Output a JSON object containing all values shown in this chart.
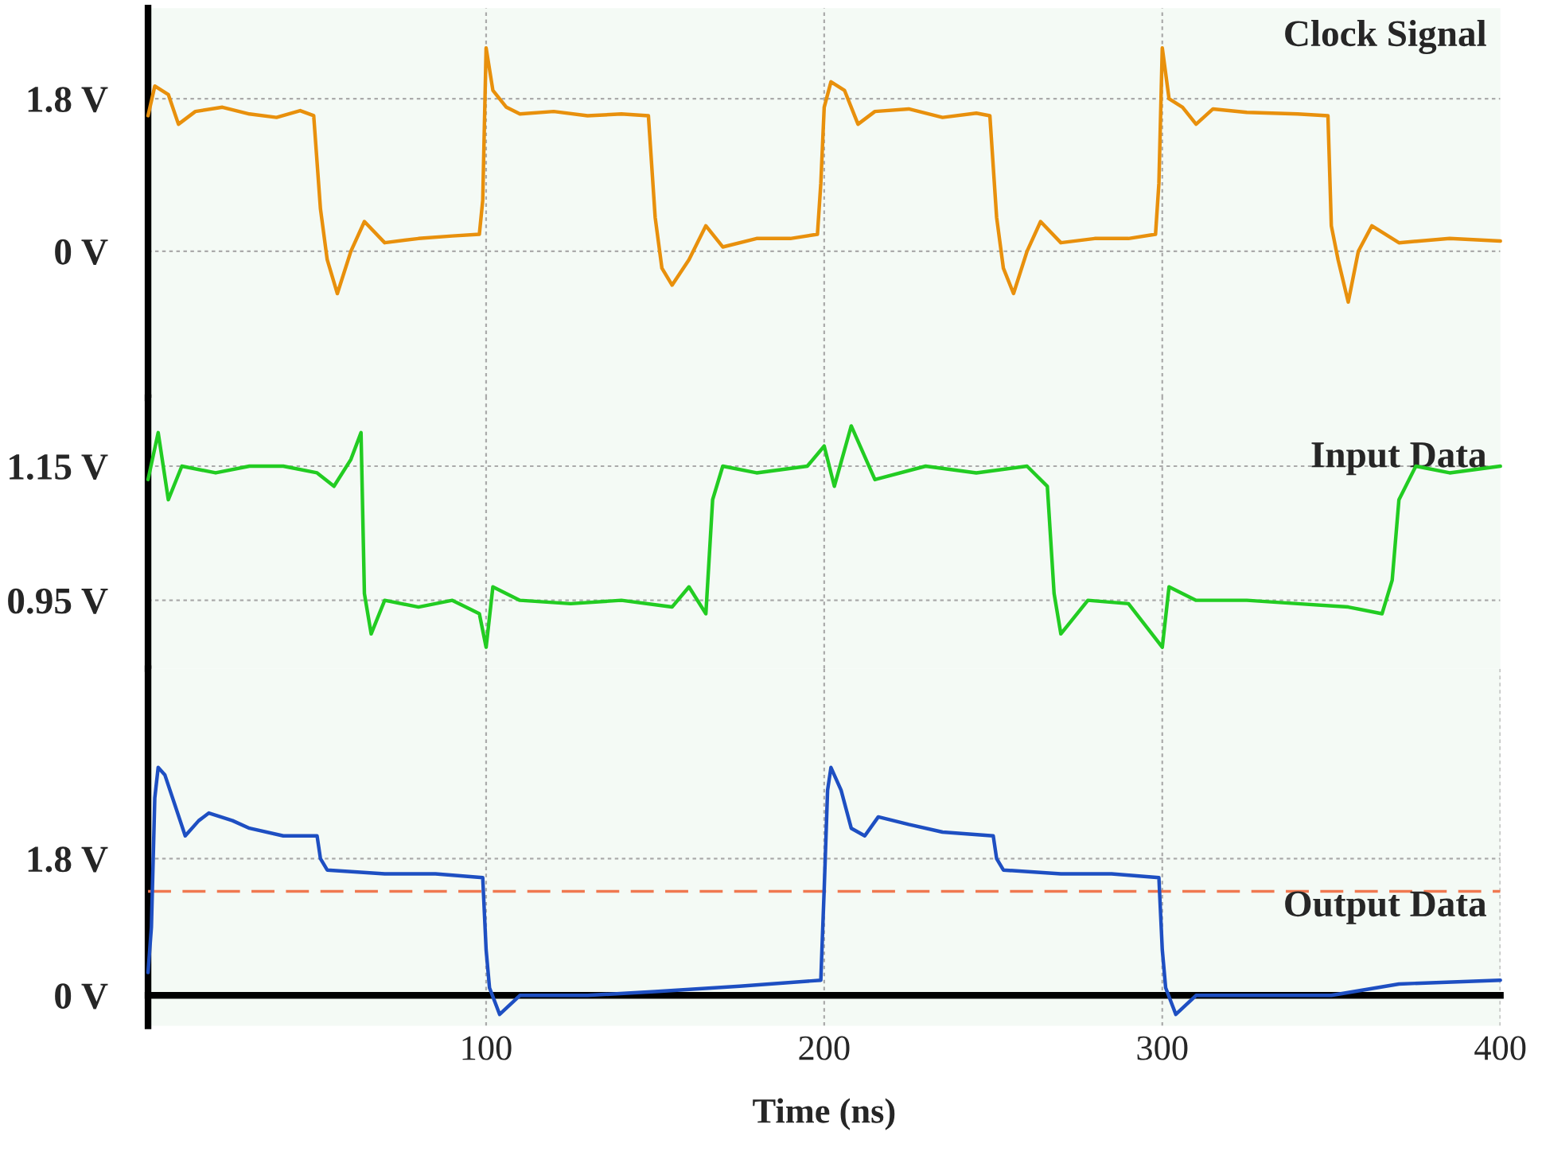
{
  "chart_data": [
    {
      "type": "line",
      "title": "Clock Signal",
      "xlim": [
        0,
        400
      ],
      "ylim": [
        -1.73,
        2.87
      ],
      "yticks": [
        {
          "value": 0,
          "label": "0 V"
        },
        {
          "value": 1.8,
          "label": "1.8 V"
        }
      ],
      "tick_labels": "y",
      "grid": true,
      "marker": "none",
      "line_style": "solid",
      "series": [
        {
          "color": "#e8900c",
          "x": [
            0,
            2,
            6,
            9,
            14,
            22,
            30,
            38,
            45,
            49,
            51,
            53,
            56,
            60,
            64,
            70,
            80,
            90,
            98,
            99,
            100,
            102,
            106,
            110,
            120,
            130,
            140,
            148,
            150,
            152,
            155,
            160,
            165,
            170,
            180,
            190,
            198,
            199,
            200,
            202,
            206,
            210,
            215,
            225,
            235,
            245,
            249,
            251,
            253,
            256,
            260,
            264,
            270,
            280,
            290,
            298,
            299,
            300,
            302,
            306,
            310,
            315,
            325,
            340,
            349,
            350,
            352,
            355,
            358,
            362,
            370,
            385,
            400
          ],
          "values": [
            1.6,
            1.95,
            1.85,
            1.5,
            1.65,
            1.7,
            1.62,
            1.58,
            1.66,
            1.6,
            0.5,
            -0.1,
            -0.5,
            0.0,
            0.35,
            0.1,
            0.15,
            0.18,
            0.2,
            0.6,
            2.4,
            1.9,
            1.7,
            1.62,
            1.65,
            1.6,
            1.62,
            1.6,
            0.4,
            -0.2,
            -0.4,
            -0.1,
            0.3,
            0.05,
            0.15,
            0.15,
            0.2,
            0.8,
            1.7,
            2.0,
            1.9,
            1.5,
            1.65,
            1.68,
            1.58,
            1.63,
            1.6,
            0.4,
            -0.2,
            -0.5,
            0.0,
            0.35,
            0.1,
            0.15,
            0.15,
            0.2,
            0.8,
            2.4,
            1.8,
            1.7,
            1.5,
            1.68,
            1.64,
            1.62,
            1.6,
            0.3,
            -0.1,
            -0.6,
            0.0,
            0.3,
            0.1,
            0.15,
            0.12
          ]
        }
      ]
    },
    {
      "type": "line",
      "title": "Input Data",
      "xlim": [
        0,
        400
      ],
      "ylim": [
        0.848,
        1.252
      ],
      "yticks": [
        {
          "value": 0.95,
          "label": "0.95 V"
        },
        {
          "value": 1.15,
          "label": "1.15 V"
        }
      ],
      "tick_labels": "y",
      "grid": true,
      "marker": "none",
      "line_style": "solid",
      "series": [
        {
          "color": "#22cc22",
          "x": [
            0,
            3,
            6,
            10,
            20,
            30,
            40,
            50,
            55,
            60,
            63,
            64,
            66,
            70,
            80,
            90,
            98,
            100,
            102,
            110,
            125,
            140,
            155,
            160,
            165,
            167,
            170,
            180,
            195,
            200,
            203,
            208,
            215,
            230,
            245,
            260,
            266,
            268,
            270,
            278,
            290,
            300,
            302,
            310,
            325,
            340,
            355,
            365,
            368,
            370,
            375,
            385,
            400
          ],
          "values": [
            1.13,
            1.2,
            1.1,
            1.15,
            1.14,
            1.15,
            1.15,
            1.14,
            1.12,
            1.16,
            1.2,
            0.96,
            0.9,
            0.95,
            0.94,
            0.95,
            0.93,
            0.88,
            0.97,
            0.95,
            0.945,
            0.95,
            0.94,
            0.97,
            0.93,
            1.1,
            1.15,
            1.14,
            1.15,
            1.18,
            1.12,
            1.21,
            1.13,
            1.15,
            1.14,
            1.15,
            1.12,
            0.96,
            0.9,
            0.95,
            0.945,
            0.88,
            0.97,
            0.95,
            0.95,
            0.945,
            0.94,
            0.93,
            0.98,
            1.1,
            1.15,
            1.14,
            1.15
          ]
        }
      ]
    },
    {
      "type": "line",
      "title": "Output Data",
      "xlabel": "Time (ns)",
      "xlim": [
        0,
        400
      ],
      "ylim": [
        -0.4,
        4.3
      ],
      "xticks": [
        {
          "value": 0,
          "label": null
        },
        100,
        200,
        300,
        400
      ],
      "yticks": [
        {
          "value": 0,
          "label": "0 V"
        },
        {
          "value": 1.8,
          "label": "1.8 V"
        }
      ],
      "grid": true,
      "marker": "none",
      "line_style": "solid",
      "ref_lines": [
        {
          "axis": "y",
          "value": 1.37,
          "color": "#f07850",
          "line_style": "dashed"
        }
      ],
      "series": [
        {
          "color": "#1e4fc2",
          "x": [
            0,
            1,
            2,
            3,
            5,
            8,
            11,
            15,
            18,
            25,
            30,
            40,
            50,
            51,
            53,
            70,
            85,
            99,
            100,
            101,
            104,
            110,
            130,
            150,
            175,
            199,
            200,
            201,
            202,
            205,
            208,
            212,
            216,
            225,
            235,
            250,
            251,
            253,
            270,
            285,
            299,
            300,
            301,
            304,
            310,
            330,
            350,
            370,
            400
          ],
          "values": [
            0.3,
            0.9,
            2.6,
            3.0,
            2.9,
            2.5,
            2.1,
            2.3,
            2.4,
            2.3,
            2.2,
            2.1,
            2.1,
            1.8,
            1.65,
            1.6,
            1.6,
            1.55,
            0.6,
            0.1,
            -0.25,
            0.0,
            0.0,
            0.05,
            0.12,
            0.2,
            1.4,
            2.7,
            3.0,
            2.7,
            2.2,
            2.1,
            2.35,
            2.25,
            2.15,
            2.1,
            1.8,
            1.65,
            1.6,
            1.6,
            1.55,
            0.6,
            0.1,
            -0.25,
            0.0,
            0.0,
            0.0,
            0.15,
            0.2
          ]
        }
      ]
    }
  ]
}
